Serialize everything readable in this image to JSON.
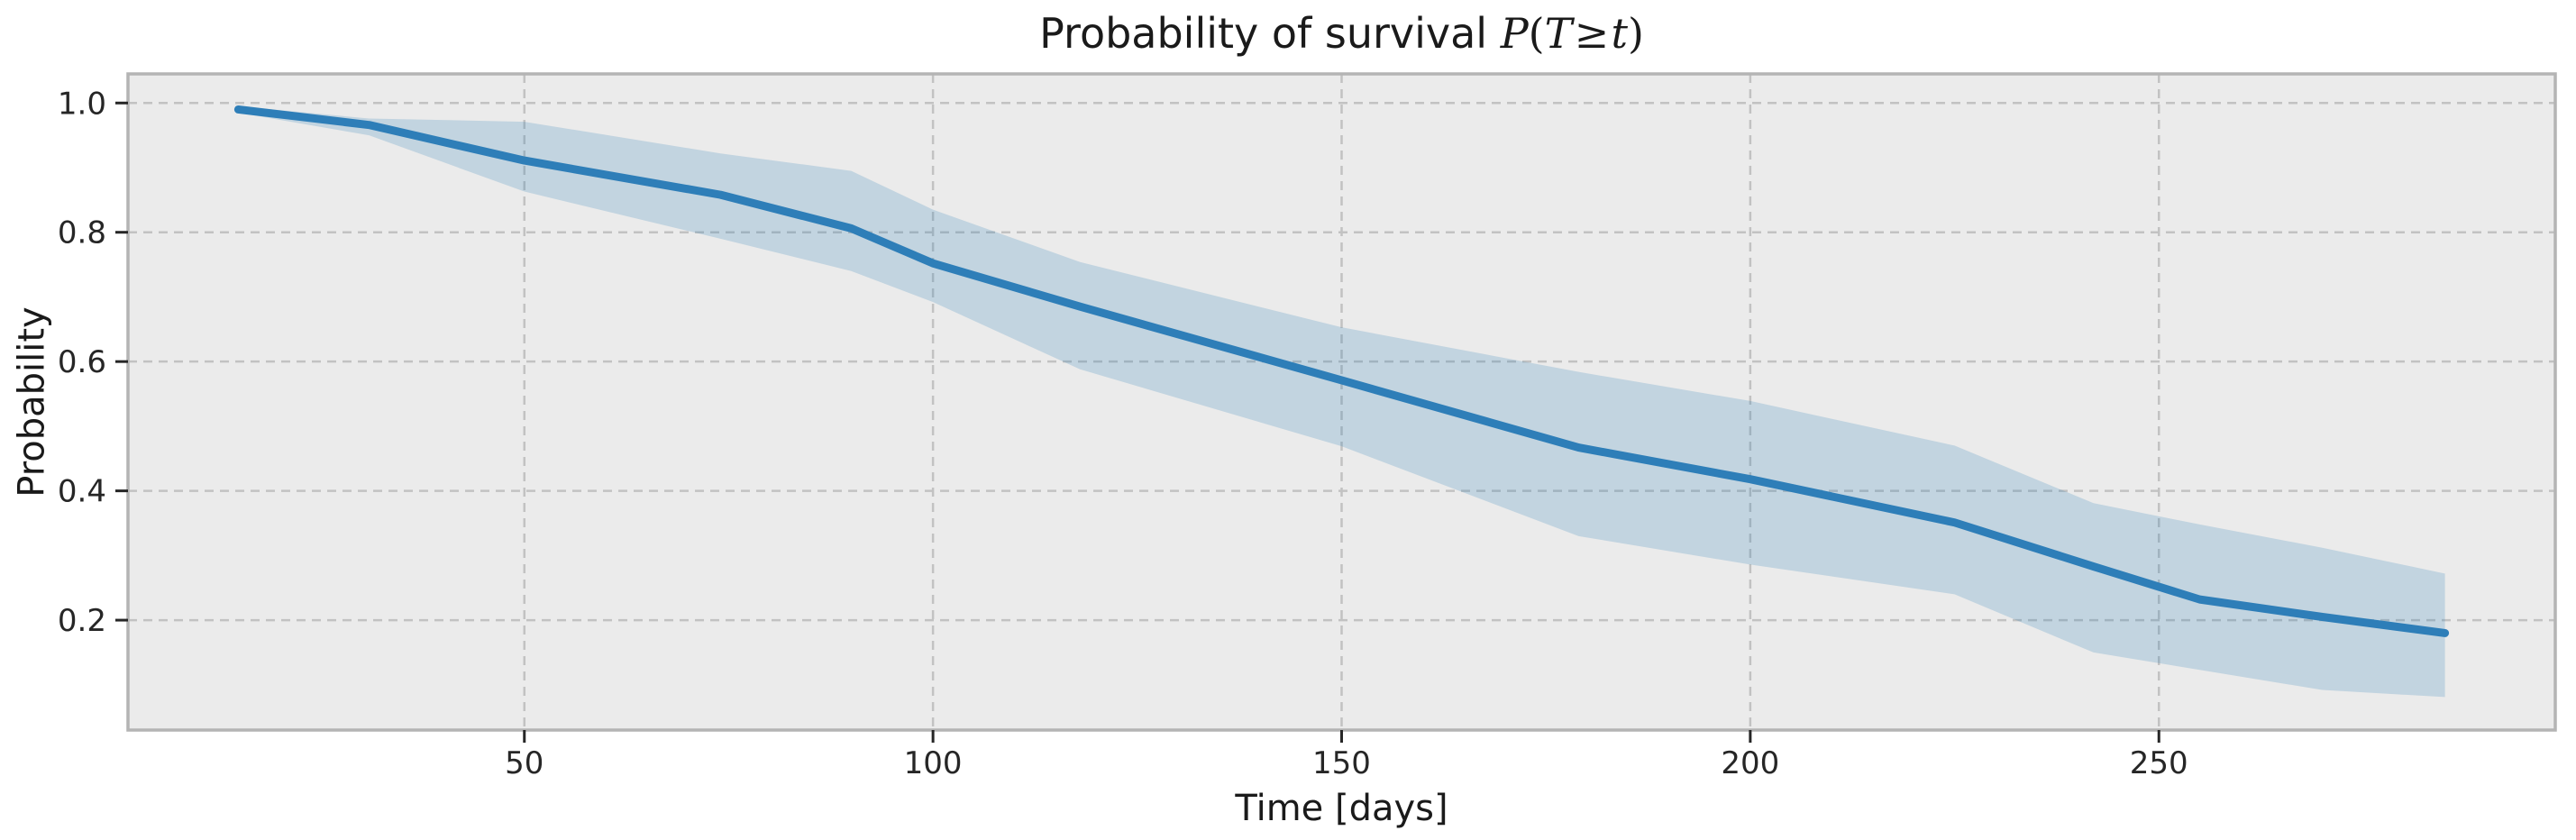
{
  "chart_data": {
    "type": "line",
    "title": "Probability of survival P(T ≥ t)",
    "title_segments": {
      "prefix": "Probability of survival ",
      "p": "P",
      "open_paren": "(",
      "T": "T",
      "geq": "≥",
      "t": "t",
      "close_paren": ")"
    },
    "xlabel": "Time [days]",
    "ylabel": "Probability",
    "x": [
      15,
      31,
      50,
      74,
      90,
      100,
      118,
      150,
      179,
      200,
      225,
      242,
      255,
      270,
      285
    ],
    "series": [
      {
        "name": "survival_probability",
        "values": [
          0.99,
          0.966,
          0.911,
          0.858,
          0.806,
          0.752,
          0.685,
          0.571,
          0.467,
          0.418,
          0.351,
          0.283,
          0.232,
          0.205,
          0.18
        ]
      },
      {
        "name": "ci_upper",
        "values": [
          0.995,
          0.976,
          0.971,
          0.922,
          0.895,
          0.835,
          0.754,
          0.653,
          0.584,
          0.539,
          0.47,
          0.381,
          0.348,
          0.312,
          0.272
        ]
      },
      {
        "name": "ci_lower",
        "values": [
          0.985,
          0.95,
          0.863,
          0.79,
          0.74,
          0.692,
          0.588,
          0.469,
          0.33,
          0.286,
          0.24,
          0.15,
          0.123,
          0.092,
          0.081
        ]
      }
    ],
    "xlim": [
      1.5,
      298.5
    ],
    "ylim": [
      0.03,
      1.045
    ],
    "xticks": [
      50,
      100,
      150,
      200,
      250
    ],
    "xtick_labels": [
      "50",
      "100",
      "150",
      "200",
      "250"
    ],
    "yticks": [
      0.2,
      0.4,
      0.6,
      0.8,
      1.0
    ],
    "ytick_labels": [
      "0.2",
      "0.4",
      "0.6",
      "0.8",
      "1.0"
    ],
    "grid": true,
    "grid_style": "dashed",
    "legend": "none",
    "colors": {
      "line": "#2e7eb8",
      "band": "rgba(31,119,180,0.20)",
      "axes_background": "#ebebeb",
      "figure_background": "#ffffff",
      "gridline": "#c2c2c2",
      "spine": "#b4b4b4",
      "tick_mark": "#262626",
      "text": "#1a1a1a"
    }
  }
}
